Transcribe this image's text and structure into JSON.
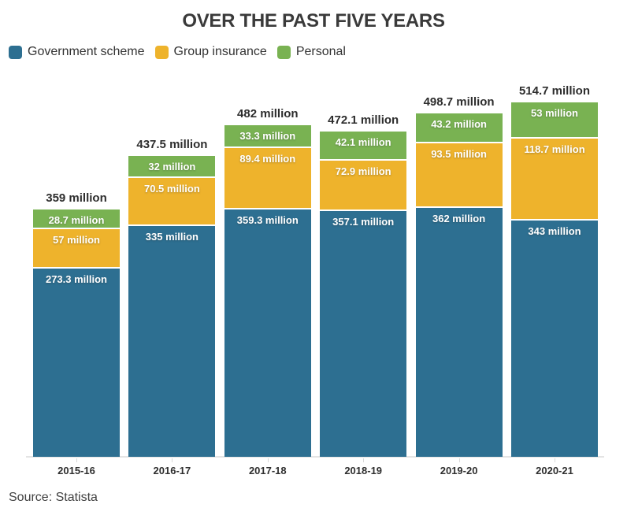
{
  "title": "OVER THE PAST FIVE YEARS",
  "legend": {
    "items": [
      {
        "label": "Government scheme",
        "color": "#2d6f91"
      },
      {
        "label": "Group insurance",
        "color": "#eeb32c"
      },
      {
        "label": "Personal",
        "color": "#79b252"
      }
    ]
  },
  "footer": {
    "source": "Source: Statista"
  },
  "colors": {
    "axis_line": "#e4e4e4",
    "axis_tick": "#d9d9d9",
    "title_text": "#3a3a3a",
    "total_label_text": "#2d2d2d",
    "segment_label_text": "#ffffff",
    "background": "#ffffff"
  },
  "chart_data": {
    "type": "bar",
    "stacked": true,
    "title": "OVER THE PAST FIVE YEARS",
    "unit": "million",
    "legend_position": "top-left",
    "grid": false,
    "categories": [
      "2015-16",
      "2016-17",
      "2017-18",
      "2018-19",
      "2019-20",
      "2020-21"
    ],
    "series": [
      {
        "name": "Government scheme",
        "color": "#2d6f91",
        "values": [
          273.3,
          335,
          359.3,
          357.1,
          362,
          343
        ],
        "labels": [
          "273.3 million",
          "335 million",
          "359.3 million",
          "357.1 million",
          "362 million",
          "343 million"
        ]
      },
      {
        "name": "Group insurance",
        "color": "#eeb32c",
        "values": [
          57,
          70.5,
          89.4,
          72.9,
          93.5,
          118.7
        ],
        "labels": [
          "57 million",
          "70.5 million",
          "89.4 million",
          "72.9 million",
          "93.5 million",
          "118.7 million"
        ]
      },
      {
        "name": "Personal",
        "color": "#79b252",
        "values": [
          28.7,
          32,
          33.3,
          42.1,
          43.2,
          53
        ],
        "labels": [
          "28.7 million",
          "32 million",
          "33.3 million",
          "42.1 million",
          "43.2 million",
          "53 million"
        ]
      }
    ],
    "totals": [
      359,
      437.5,
      482,
      472.1,
      498.7,
      514.7
    ],
    "total_labels": [
      "359 million",
      "437.5 million",
      "482 million",
      "472.1 million",
      "498.7 million",
      "514.7 million"
    ],
    "source": "Source: Statista"
  }
}
